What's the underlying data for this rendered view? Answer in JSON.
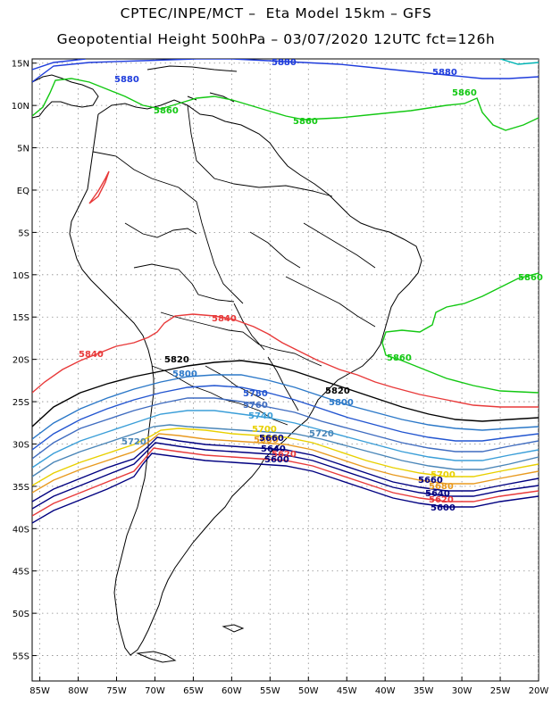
{
  "header": {
    "title_line1": "CPTEC/INPE/MCT –  Eta Model 15km – GFS",
    "title_line2": "Geopotential Height 500hPa – 03/07/2020 12UTC fct=126h"
  },
  "axes": {
    "lat_labels": [
      "15N",
      "10N",
      "5N",
      "EQ",
      "5S",
      "10S",
      "15S",
      "20S",
      "25S",
      "30S",
      "35S",
      "40S",
      "45S",
      "50S",
      "55S"
    ],
    "lon_labels": [
      "85W",
      "80W",
      "75W",
      "70W",
      "65W",
      "60W",
      "55W",
      "50W",
      "45W",
      "40W",
      "35W",
      "30W",
      "25W",
      "20W"
    ],
    "lat_range": [
      15.5,
      -58
    ],
    "lon_range": [
      -86,
      -20
    ]
  },
  "contours": [
    {
      "level": 5880,
      "color": "#1e3cdc",
      "labels": [
        "5880",
        "5880",
        "5880"
      ]
    },
    {
      "level": 5860,
      "color": "#12c812",
      "labels": [
        "5860",
        "5860",
        "5860",
        "5860",
        "5860"
      ]
    },
    {
      "level": 5840,
      "color": "#e83a3a",
      "labels": [
        "5840",
        "5840"
      ]
    },
    {
      "level": 5820,
      "color": "#000000",
      "labels": [
        "5820",
        "5820"
      ]
    },
    {
      "level": 5800,
      "color": "#2b78c8",
      "labels": [
        "5800",
        "5800"
      ]
    },
    {
      "level": 5780,
      "color": "#2255d0",
      "labels": [
        "5780"
      ]
    },
    {
      "level": 5760,
      "color": "#3f6cc0",
      "labels": [
        "5760"
      ]
    },
    {
      "level": 5740,
      "color": "#3a9ed8",
      "labels": [
        "5740"
      ]
    },
    {
      "level": 5720,
      "color": "#4a86b8",
      "labels": [
        "5720",
        "5720"
      ]
    },
    {
      "level": 5700,
      "color": "#e8d000",
      "labels": [
        "5700",
        "5700"
      ]
    },
    {
      "level": 5680,
      "color": "#e89a20",
      "labels": [
        "5680",
        "5680"
      ]
    },
    {
      "level": 5660,
      "color": "#000080",
      "labels": [
        "5660",
        "5660"
      ]
    },
    {
      "level": 5640,
      "color": "#000080",
      "labels": [
        "5640",
        "5640"
      ]
    },
    {
      "level": 5620,
      "color": "#e83a3a",
      "labels": [
        "5620",
        "5620"
      ]
    },
    {
      "level": 5600,
      "color": "#000080",
      "labels": [
        "5600",
        "5600"
      ]
    }
  ],
  "colors": {
    "grid": "#8c8c8c",
    "coast": "#000000"
  }
}
